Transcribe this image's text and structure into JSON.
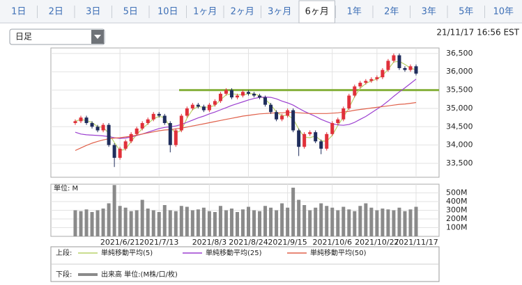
{
  "tabs": [
    "1日",
    "2日",
    "3日",
    "5日",
    "10日",
    "1ヶ月",
    "2ヶ月",
    "3ヶ月",
    "6ヶ月",
    "1年",
    "2年",
    "3年",
    "5年",
    "10年"
  ],
  "active_tab": 8,
  "dropdown": "日足",
  "timestamp": "21/11/17 16:56 EST",
  "chart_data": [
    {
      "type": "candlestick",
      "legend_label": "上段:",
      "categories": [
        null,
        null,
        null,
        null,
        null,
        null,
        null,
        null,
        "2021/6/21",
        null,
        null,
        null,
        null,
        null,
        null,
        "2021/7/13",
        null,
        null,
        null,
        null,
        null,
        null,
        null,
        null,
        "2021/8/3",
        null,
        null,
        null,
        null,
        null,
        null,
        "2021/8/24",
        null,
        null,
        null,
        null,
        null,
        null,
        "2021/9/15",
        null,
        null,
        null,
        null,
        null,
        null,
        null,
        "2021/10/6",
        null,
        null,
        null,
        null,
        null,
        null,
        null,
        "2021/10/27",
        null,
        null,
        null,
        null,
        null,
        null,
        "2021/11/17"
      ],
      "open": [
        34600,
        34650,
        34750,
        34600,
        34500,
        34400,
        34550,
        34000,
        33650,
        33900,
        34100,
        34300,
        34450,
        34600,
        34700,
        34850,
        34800,
        34600,
        34000,
        34400,
        34800,
        35000,
        35100,
        35050,
        34950,
        35100,
        35200,
        35400,
        35500,
        35300,
        35350,
        35450,
        35400,
        35350,
        35300,
        35100,
        34900,
        34700,
        34800,
        34950,
        34400,
        33950,
        34300,
        34350,
        34100,
        33900,
        34300,
        34600,
        34700,
        35000,
        35350,
        35600,
        35700,
        35750,
        35800,
        35850,
        36050,
        36300,
        36450,
        36100,
        36050,
        36150
      ],
      "high": [
        34700,
        34800,
        34800,
        34650,
        34550,
        34600,
        34600,
        34050,
        33950,
        34150,
        34350,
        34500,
        34650,
        34750,
        34900,
        34900,
        34850,
        34650,
        34450,
        34850,
        35050,
        35150,
        35150,
        35100,
        35150,
        35250,
        35450,
        35550,
        35550,
        35400,
        35500,
        35500,
        35450,
        35400,
        35350,
        35150,
        34950,
        34850,
        35000,
        35000,
        34450,
        34350,
        34400,
        34400,
        34150,
        34350,
        34650,
        34750,
        35050,
        35400,
        35650,
        35750,
        35800,
        35850,
        35900,
        36100,
        36350,
        36500,
        36500,
        36150,
        36200,
        36200
      ],
      "low": [
        34550,
        34600,
        34550,
        34450,
        34350,
        34350,
        33950,
        33400,
        33600,
        33850,
        34050,
        34250,
        34400,
        34550,
        34650,
        34750,
        34550,
        33800,
        33950,
        34350,
        34750,
        34950,
        35000,
        34900,
        34900,
        35050,
        35150,
        35350,
        35250,
        35250,
        35300,
        35350,
        35300,
        35250,
        35050,
        34850,
        34650,
        34650,
        34750,
        34350,
        33700,
        33900,
        34250,
        34050,
        33750,
        33850,
        34250,
        34550,
        34650,
        34950,
        35300,
        35550,
        35650,
        35700,
        35750,
        35800,
        36000,
        36250,
        36050,
        36000,
        36000,
        35900
      ],
      "close": [
        34650,
        34750,
        34600,
        34500,
        34400,
        34550,
        34000,
        33650,
        33900,
        34100,
        34300,
        34450,
        34600,
        34700,
        34850,
        34800,
        34600,
        34000,
        34400,
        34800,
        35000,
        35100,
        35050,
        34950,
        35100,
        35200,
        35400,
        35500,
        35300,
        35350,
        35450,
        35400,
        35350,
        35300,
        35100,
        34900,
        34700,
        34800,
        34950,
        34400,
        33950,
        34300,
        34350,
        34100,
        33900,
        34300,
        34600,
        34700,
        35000,
        35350,
        35600,
        35700,
        35750,
        35800,
        35850,
        36050,
        36300,
        36450,
        36100,
        36050,
        36150,
        35950
      ],
      "up_color": "#e0303a",
      "down_color": "#1f2d5c",
      "series": [
        {
          "name": "単純移動平均(5)",
          "color": "#b9d26a",
          "values": [
            34650,
            34700,
            34667,
            34617,
            34500,
            34483,
            34317,
            34067,
            33850,
            33883,
            34100,
            34283,
            34450,
            34583,
            34717,
            34783,
            34750,
            34467,
            34333,
            34400,
            34733,
            34967,
            35050,
            35033,
            35033,
            35083,
            35233,
            35367,
            35400,
            35383,
            35367,
            35400,
            35400,
            35350,
            35250,
            35100,
            34900,
            34800,
            34817,
            34717,
            34433,
            34217,
            34200,
            34250,
            34117,
            34100,
            34267,
            34533,
            34767,
            35017,
            35317,
            35550,
            35683,
            35750,
            35800,
            35900,
            36067,
            36267,
            36283,
            36200,
            36100,
            36050
          ]
        },
        {
          "name": "単純移動平均(25)",
          "color": "#9b3fd0",
          "values": [
            34350,
            34300,
            34280,
            34270,
            34260,
            34250,
            34230,
            34200,
            34180,
            34190,
            34220,
            34260,
            34300,
            34350,
            34400,
            34450,
            34480,
            34500,
            34520,
            34560,
            34620,
            34680,
            34740,
            34790,
            34850,
            34900,
            34960,
            35020,
            35080,
            35130,
            35180,
            35230,
            35270,
            35300,
            35310,
            35300,
            35260,
            35200,
            35150,
            35090,
            35000,
            34920,
            34850,
            34780,
            34700,
            34640,
            34580,
            34550,
            34540,
            34560,
            34620,
            34700,
            34780,
            34880,
            34980,
            35080,
            35200,
            35330,
            35450,
            35560,
            35680,
            35800
          ]
        },
        {
          "name": "単純移動平均(50)",
          "color": "#e0604a",
          "values": [
            33850,
            33920,
            33990,
            34050,
            34100,
            34140,
            34170,
            34190,
            34200,
            34220,
            34240,
            34270,
            34300,
            34330,
            34360,
            34390,
            34410,
            34420,
            34440,
            34460,
            34490,
            34520,
            34550,
            34580,
            34610,
            34640,
            34670,
            34700,
            34730,
            34760,
            34790,
            34810,
            34830,
            34850,
            34860,
            34870,
            34880,
            34880,
            34890,
            34890,
            34880,
            34870,
            34860,
            34860,
            34860,
            34860,
            34870,
            34880,
            34900,
            34920,
            34950,
            34970,
            34990,
            35010,
            35030,
            35050,
            35070,
            35090,
            35110,
            35120,
            35140,
            35160
          ]
        }
      ],
      "hline": {
        "value": 35500,
        "color": "#86b03c"
      },
      "ylim": [
        33120,
        36650
      ],
      "yticks": [
        {
          "value": 33500,
          "label": "33,500"
        },
        {
          "value": 34000,
          "label": "34,000"
        },
        {
          "value": 34500,
          "label": "34,500"
        },
        {
          "value": 35000,
          "label": "35,000"
        },
        {
          "value": 35500,
          "label": "35,500"
        },
        {
          "value": 36000,
          "label": "36,000"
        },
        {
          "value": 36500,
          "label": "36,500"
        }
      ],
      "grid": true
    },
    {
      "type": "bar",
      "legend_label": "下段:",
      "unit_label": "単位: M",
      "series": [
        {
          "name": "出来高 単位:(M株/口/枚)",
          "color": "#8a8a8a",
          "values": [
            300,
            290,
            310,
            280,
            300,
            320,
            380,
            590,
            350,
            330,
            290,
            300,
            420,
            320,
            300,
            280,
            360,
            300,
            290,
            350,
            340,
            300,
            310,
            330,
            290,
            280,
            350,
            300,
            320,
            280,
            310,
            340,
            300,
            290,
            350,
            330,
            300,
            380,
            330,
            560,
            420,
            360,
            300,
            330,
            380,
            350,
            330,
            300,
            340,
            310,
            290,
            350,
            380,
            330,
            300,
            320,
            310,
            300,
            330,
            290,
            310,
            340
          ]
        }
      ],
      "ylim": [
        0,
        600
      ],
      "yticks": [
        {
          "value": 100,
          "label": "100M"
        },
        {
          "value": 200,
          "label": "200M"
        },
        {
          "value": 300,
          "label": "300M"
        },
        {
          "value": 400,
          "label": "400M"
        },
        {
          "value": 500,
          "label": "500M"
        }
      ],
      "grid": true
    }
  ]
}
